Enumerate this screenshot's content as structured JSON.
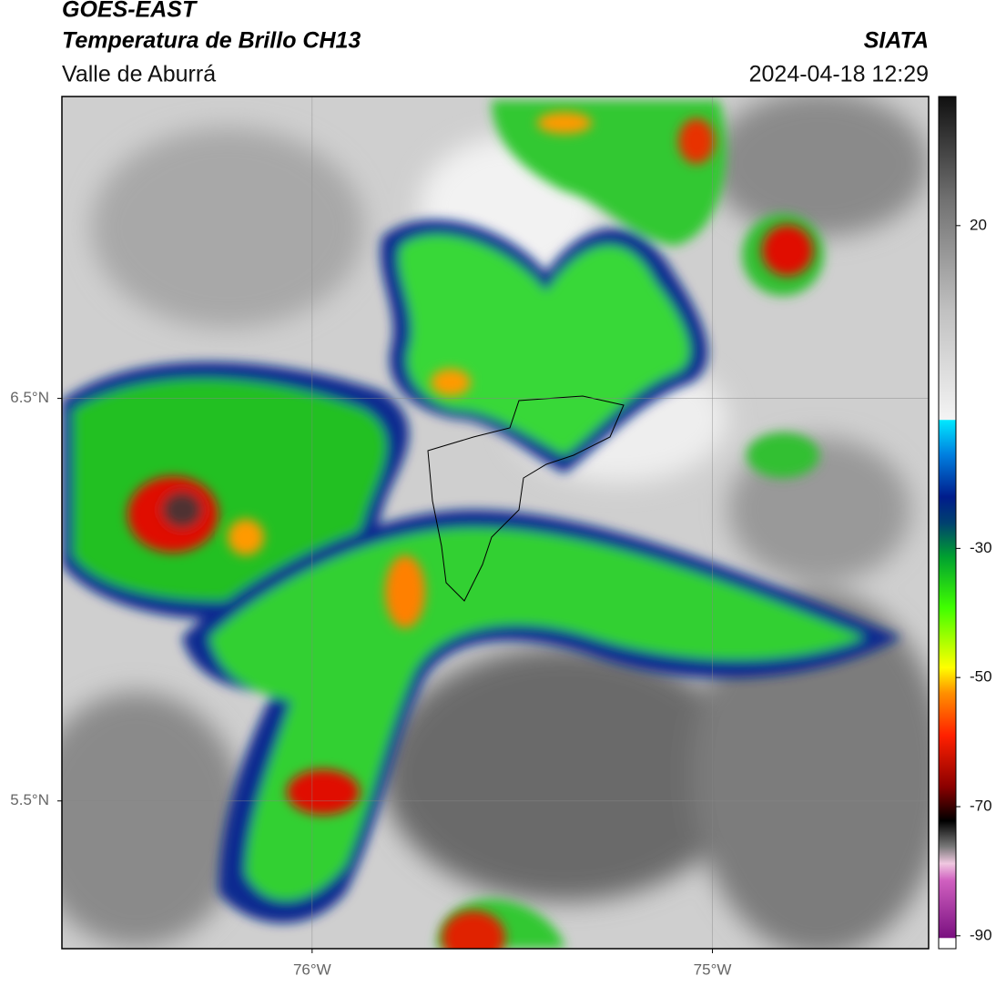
{
  "header": {
    "title": "GOES-EAST",
    "subtitle": "Temperatura de Brillo CH13",
    "region": "Valle de Aburrá",
    "source": "SIATA",
    "datetime": "2024-04-18 12:29"
  },
  "map": {
    "xlim": [
      -76.625,
      -74.46
    ],
    "ylim": [
      5.133,
      7.25
    ],
    "xticks": [
      {
        "value": -76,
        "label": "76°W"
      },
      {
        "value": -75,
        "label": "75°W"
      }
    ],
    "yticks": [
      {
        "value": 6.5,
        "label": "6.5°N"
      },
      {
        "value": 5.5,
        "label": "5.5°N"
      }
    ],
    "grid": true
  },
  "colorbar": {
    "lim": [
      -92,
      40
    ],
    "ticks": [
      20,
      -30,
      -50,
      -70,
      -90
    ]
  }
}
